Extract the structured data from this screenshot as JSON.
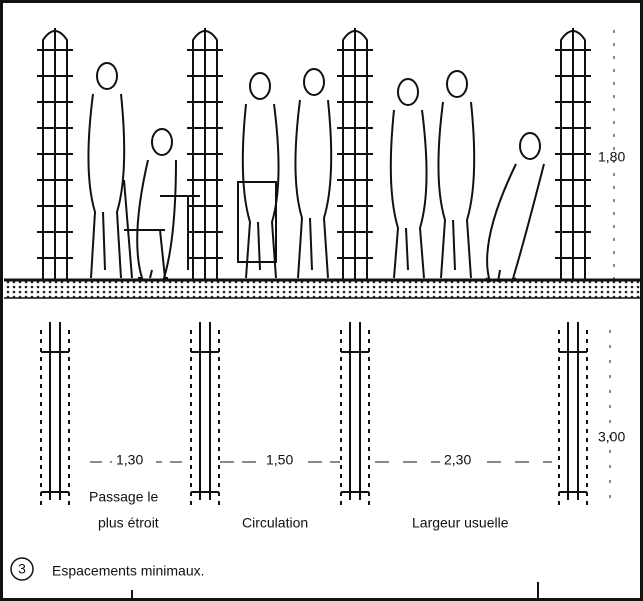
{
  "elevation": {
    "height": "1,80"
  },
  "plan": {
    "depth": "3,00",
    "widths": [
      "1,30",
      "1,50",
      "2,30"
    ],
    "labels": [
      [
        "Passage le",
        "plus étroit"
      ],
      [
        "Circulation"
      ],
      [
        "Largeur usuelle"
      ]
    ]
  },
  "caption": {
    "number": "3",
    "text": "Espacements minimaux."
  }
}
